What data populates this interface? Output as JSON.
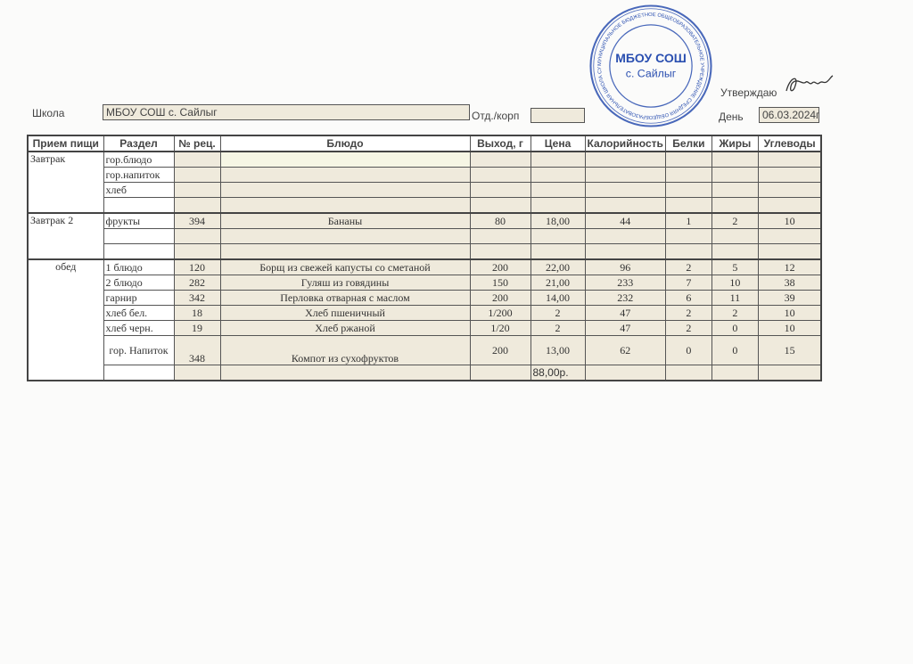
{
  "header": {
    "school_label": "Школа",
    "school_value": "МБОУ СОШ с. Сайлыг",
    "dept_label": "Отд./корп",
    "dept_value": "",
    "approve_label": "Утверждаю",
    "day_label": "День",
    "day_value": "06.03.2024г"
  },
  "stamp": {
    "center_text_1": "МБОУ СОШ",
    "center_text_2": "с. Сайлыг",
    "ring_text": "МУНИЦИПАЛЬНОЕ БЮДЖЕТНОЕ ОБЩЕОБРАЗОВАТЕЛЬНОЕ УЧРЕЖДЕНИЕ СРЕДНЯЯ ОБЩЕОБРАЗОВАТЕЛЬНАЯ ШКОЛА СУМ с. САЙЛЫГ ОГРН 1031700681781",
    "color": "#2a4fb0"
  },
  "table": {
    "columns": [
      "Прием пищи",
      "Раздел",
      "№ рец.",
      "Блюдо",
      "Выход, г",
      "Цена",
      "Калорийность",
      "Белки",
      "Жиры",
      "Углеводы"
    ],
    "rows": [
      [
        "Завтрак",
        "гор.блюдо",
        "",
        "",
        "",
        "",
        "",
        "",
        "",
        ""
      ],
      [
        "",
        "гор.напиток",
        "",
        "",
        "",
        "",
        "",
        "",
        "",
        ""
      ],
      [
        "",
        "хлеб",
        "",
        "",
        "",
        "",
        "",
        "",
        "",
        ""
      ],
      [
        "",
        "",
        "",
        "",
        "",
        "",
        "",
        "",
        "",
        ""
      ],
      [
        "Завтрак 2",
        "фрукты",
        "394",
        "Бананы",
        "80",
        "18,00",
        "44",
        "1",
        "2",
        "10"
      ],
      [
        "",
        "",
        "",
        "",
        "",
        "",
        "",
        "",
        "",
        ""
      ],
      [
        "",
        "",
        "",
        "",
        "",
        "",
        "",
        "",
        "",
        ""
      ],
      [
        "обед",
        "1 блюдо",
        "120",
        "Борщ из свежей капусты со сметаной",
        "200",
        "22,00",
        "96",
        "2",
        "5",
        "12"
      ],
      [
        "",
        "2 блюдо",
        "282",
        "Гуляш из говядины",
        "150",
        "21,00",
        "233",
        "7",
        "10",
        "38"
      ],
      [
        "",
        "гарнир",
        "342",
        "Перловка отварная с маслом",
        "200",
        "14,00",
        "232",
        "6",
        "11",
        "39"
      ],
      [
        "",
        "хлеб бел.",
        "18",
        "Хлеб пшеничный",
        "1/200",
        "2",
        "47",
        "2",
        "2",
        "10"
      ],
      [
        "",
        "хлеб черн.",
        "19",
        "Хлеб ржаной",
        "1/20",
        "2",
        "47",
        "2",
        "0",
        "10"
      ],
      [
        "",
        "гор. Напиток",
        "348",
        "Компот из сухофруктов",
        "200",
        "13,00",
        "62",
        "0",
        "0",
        "15"
      ],
      [
        "",
        "",
        "",
        "",
        "",
        "88,00р.",
        "",
        "",
        "",
        ""
      ]
    ]
  }
}
